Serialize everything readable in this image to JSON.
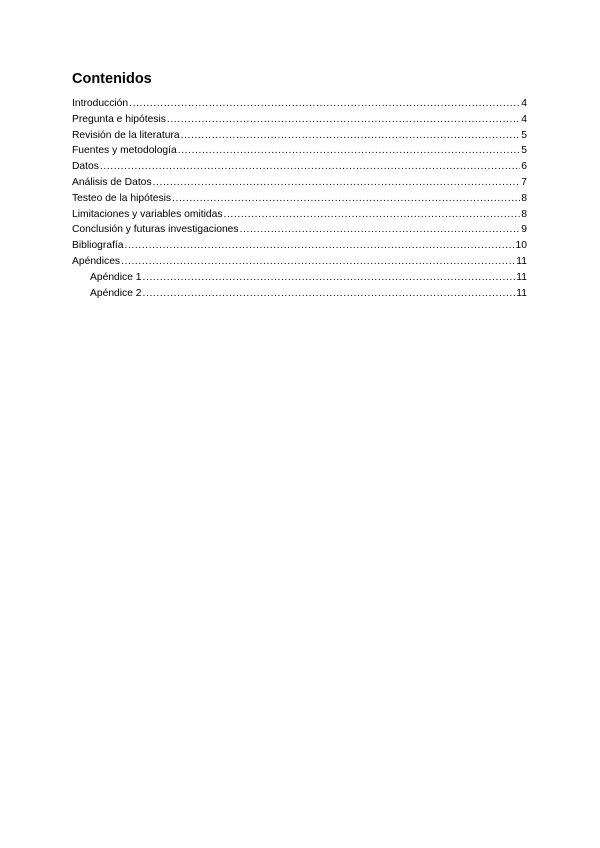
{
  "toc": {
    "title": "Contenidos",
    "entries": [
      {
        "label": "Introducción",
        "page": "4",
        "level": 1
      },
      {
        "label": "Pregunta e hipótesis",
        "page": "4",
        "level": 1
      },
      {
        "label": "Revisión de la literatura",
        "page": "5",
        "level": 1
      },
      {
        "label": "Fuentes y metodología",
        "page": "5",
        "level": 1
      },
      {
        "label": "Datos",
        "page": "6",
        "level": 1
      },
      {
        "label": "Análisis de Datos",
        "page": "7",
        "level": 1
      },
      {
        "label": "Testeo de la hipótesis",
        "page": "8",
        "level": 1
      },
      {
        "label": "Limitaciones y variables omitidas",
        "page": "8",
        "level": 1
      },
      {
        "label": "Conclusión y futuras investigaciones",
        "page": "9",
        "level": 1
      },
      {
        "label": "Bibliografía",
        "page": "10",
        "level": 1
      },
      {
        "label": "Apéndices",
        "page": "11",
        "level": 1
      },
      {
        "label": "Apéndice 1",
        "page": "11",
        "level": 2
      },
      {
        "label": "Apéndice 2",
        "page": "11",
        "level": 2
      }
    ]
  }
}
